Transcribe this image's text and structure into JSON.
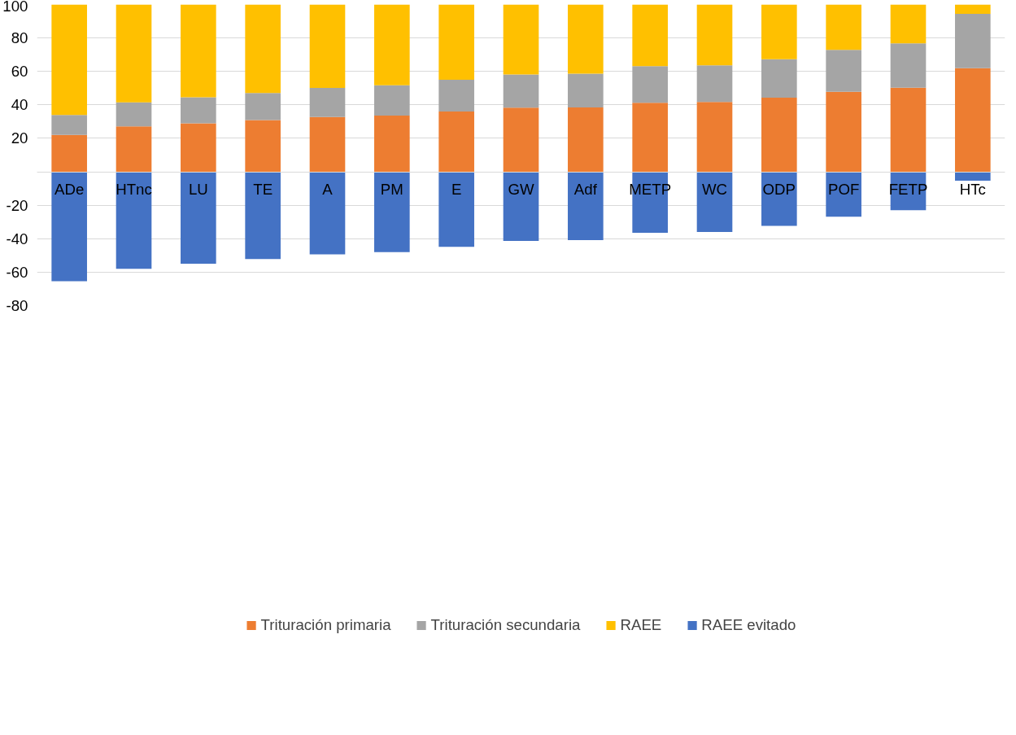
{
  "chart_data": {
    "type": "bar",
    "stacked": true,
    "categories": [
      "ADe",
      "HTnc",
      "LU",
      "TE",
      "A",
      "PM",
      "E",
      "GW",
      "Adf",
      "METP",
      "WC",
      "ODP",
      "POF",
      "FETP",
      "HTc"
    ],
    "series": [
      {
        "name": "Trituración primaria",
        "color": "#ed7d31",
        "values": [
          22.0,
          27.1,
          29.0,
          30.9,
          32.7,
          33.6,
          36.0,
          38.3,
          38.5,
          41.3,
          41.8,
          44.3,
          47.8,
          50.3,
          61.9
        ]
      },
      {
        "name": "Trituración secundaria",
        "color": "#a5a5a5",
        "values": [
          11.9,
          14.4,
          15.5,
          16.2,
          17.4,
          18.1,
          19.0,
          19.9,
          20.2,
          21.8,
          21.8,
          23.0,
          25.1,
          26.5,
          32.5
        ]
      },
      {
        "name": "RAEE",
        "color": "#ffc000",
        "values": [
          66.1,
          58.5,
          55.5,
          52.9,
          49.9,
          48.3,
          45.0,
          41.8,
          41.3,
          36.9,
          36.4,
          32.7,
          27.1,
          23.2,
          5.6
        ]
      },
      {
        "name": "RAEE evitado",
        "color": "#4472c4",
        "values": [
          -65.4,
          -58.0,
          -55.0,
          -52.2,
          -49.4,
          -48.0,
          -44.8,
          -41.3,
          -40.8,
          -36.4,
          -36.0,
          -32.3,
          -26.9,
          -23.0,
          -5.3
        ]
      }
    ],
    "ylim": [
      -80,
      100
    ],
    "yticks": [
      -80,
      -60,
      -40,
      -20,
      {
        "value": 0,
        "label": null
      },
      20,
      40,
      60,
      80,
      100
    ],
    "grid": "y",
    "legend": "bottom"
  }
}
